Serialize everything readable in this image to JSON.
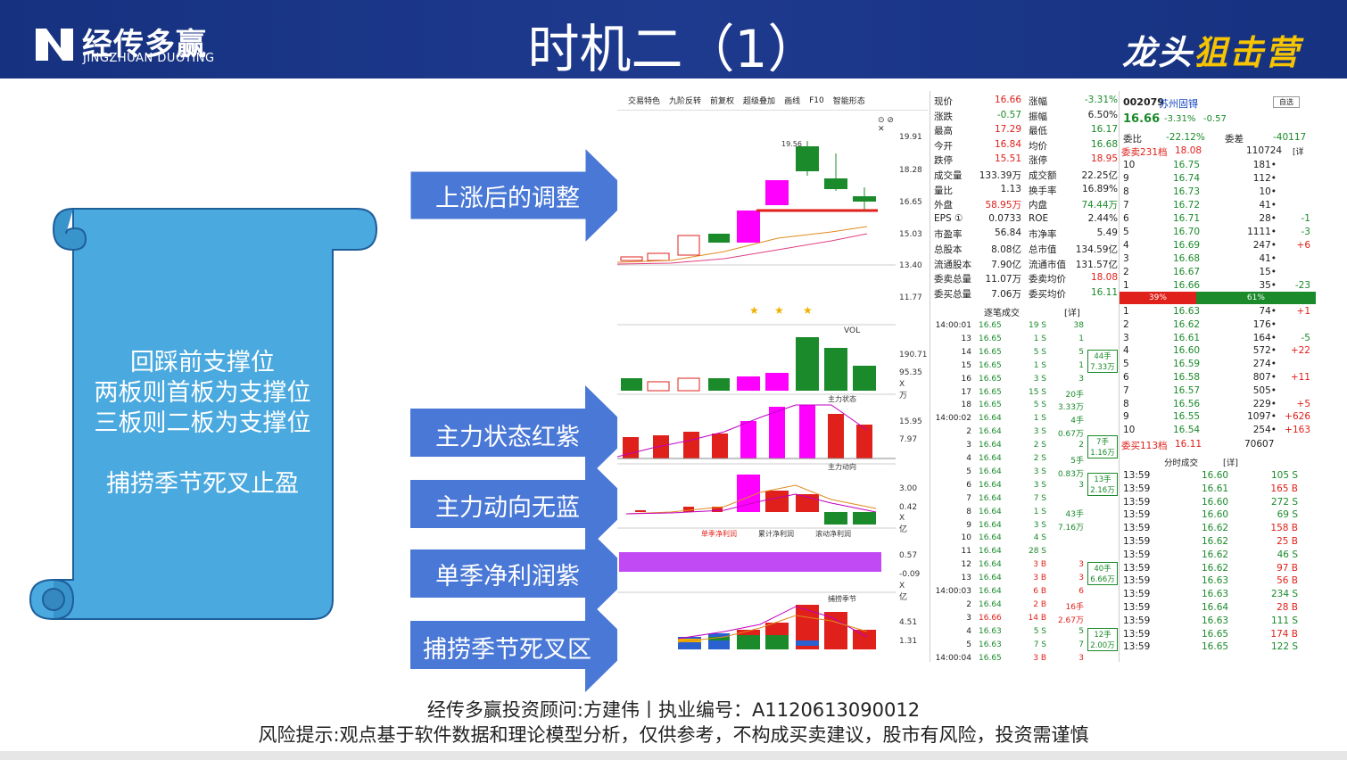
{
  "header": {
    "logo_cn": "经传多赢",
    "logo_en": "JINGZHUAN DUOYING",
    "title": "时机二（1）",
    "brand_a": "龙头",
    "brand_b": "狙击营"
  },
  "scroll_text": {
    "line1": "回踩前支撑位",
    "line2": "两板则首板为支撑位",
    "line3": "三板则二板为支撑位",
    "line4": "捕捞季节死叉止盈"
  },
  "arrows": [
    "上涨后的调整",
    "主力状态红紫",
    "主力动向无蓝",
    "单季净利润紫",
    "捕捞季节死叉区"
  ],
  "toolbar": [
    "交易特色",
    "九阶反转",
    "前复权",
    "超级叠加",
    "画线",
    "F10",
    "智能形态"
  ],
  "chart_labels": {
    "price_ticks": [
      "19.91",
      "18.28",
      "16.65",
      "15.03",
      "13.40",
      "11.77"
    ],
    "high_mark": "19.56",
    "vol_title": "VOL",
    "vol_ticks": [
      "190.71",
      "95.35",
      "X万"
    ],
    "zlzt_title": "主力状态",
    "zlzt_ticks": [
      "15.95",
      "7.97"
    ],
    "zldx_title": "主力动向",
    "zldx_ticks": [
      "3.00",
      "0.42",
      "X亿"
    ],
    "profit_tabs": [
      "单季净利润",
      "累计净利润",
      "滚动净利润"
    ],
    "profit_ticks": [
      "0.57",
      "-0.09",
      "X亿"
    ],
    "bljj_title": "捕捞季节",
    "bljj_ticks": [
      "4.51",
      "1.31"
    ]
  },
  "quote": {
    "rows": [
      [
        "现价",
        "16.66",
        "涨幅",
        "-3.31%"
      ],
      [
        "涨跌",
        "-0.57",
        "振幅",
        "6.50%"
      ],
      [
        "最高",
        "17.29",
        "最低",
        "16.17"
      ],
      [
        "今开",
        "16.84",
        "均价",
        "16.68"
      ],
      [
        "跌停",
        "15.51",
        "涨停",
        "18.95"
      ],
      [
        "成交量",
        "133.39万",
        "成交额",
        "22.25亿"
      ],
      [
        "量比",
        "1.13",
        "换手率",
        "16.89%"
      ],
      [
        "外盘",
        "58.95万",
        "内盘",
        "74.44万"
      ],
      [
        "EPS ①",
        "0.0733",
        "ROE",
        "2.44%"
      ],
      [
        "市盈率",
        "56.84",
        "市净率",
        "5.49"
      ],
      [
        "总股本",
        "8.08亿",
        "总市值",
        "134.59亿"
      ],
      [
        "流通股本",
        "7.90亿",
        "流通市值",
        "131.57亿"
      ],
      [
        "委卖总量",
        "11.07万",
        "委卖均价",
        "18.08"
      ],
      [
        "委买总量",
        "7.06万",
        "委买均价",
        "16.11"
      ]
    ],
    "ticks_title": "逐笔成交",
    "ticks_detail": "[详]",
    "ticks": [
      [
        "14:00:01",
        "16.65",
        "19 S",
        "38"
      ],
      [
        "13",
        "16.65",
        "1 S",
        "1"
      ],
      [
        "14",
        "16.65",
        "5 S",
        "5"
      ],
      [
        "15",
        "16.65",
        "1 S",
        "1"
      ],
      [
        "16",
        "16.65",
        "3 S",
        "3"
      ],
      [
        "17",
        "16.65",
        "15 S",
        "20手"
      ],
      [
        "18",
        "16.65",
        "5 S",
        "3.33万"
      ],
      [
        "14:00:02",
        "16.64",
        "1 S",
        "4手"
      ],
      [
        "2",
        "16.64",
        "3 S",
        "0.67万"
      ],
      [
        "3",
        "16.64",
        "2 S",
        "2"
      ],
      [
        "4",
        "16.64",
        "2 S",
        "5手"
      ],
      [
        "5",
        "16.64",
        "3 S",
        "0.83万"
      ],
      [
        "6",
        "16.64",
        "3 S",
        "3"
      ],
      [
        "7",
        "16.64",
        "7 S",
        ""
      ],
      [
        "8",
        "16.64",
        "1 S",
        "43手"
      ],
      [
        "9",
        "16.64",
        "3 S",
        "7.16万"
      ],
      [
        "10",
        "16.64",
        "4 S",
        ""
      ],
      [
        "11",
        "16.64",
        "28 S",
        ""
      ],
      [
        "12",
        "16.64",
        "3 B",
        "3"
      ],
      [
        "13",
        "16.64",
        "3 B",
        "3"
      ],
      [
        "14:00:03",
        "16.64",
        "6 B",
        "6"
      ],
      [
        "2",
        "16.64",
        "2 B",
        "16手"
      ],
      [
        "3",
        "16.66",
        "14 B",
        "2.67万"
      ],
      [
        "4",
        "16.63",
        "5 S",
        "5"
      ],
      [
        "5",
        "16.63",
        "7 S",
        "7"
      ],
      [
        "14:00:04",
        "16.65",
        "3 B",
        "3"
      ]
    ],
    "side_blocks": [
      [
        "44手",
        "7.33万"
      ],
      [
        "7手",
        "1.16万"
      ],
      [
        "13手",
        "2.16万"
      ],
      [
        "40手",
        "6.66万"
      ],
      [
        "12手",
        "2.00万"
      ]
    ]
  },
  "book": {
    "code": "002079",
    "name": "苏州固锝",
    "select": "自选",
    "price": "16.66",
    "pct": "-3.31%",
    "chg": "-0.57",
    "wb_label": "委比",
    "wb_val": "-22.12%",
    "wc_label": "委差",
    "wc_val": "-40117",
    "sell_summary": "委卖231档",
    "sell_summary_px": "18.08",
    "sell_summary_vol": "110724",
    "sell_summary_tag": "[详",
    "asks": [
      [
        "10",
        "16.75",
        "181",
        ""
      ],
      [
        "9",
        "16.74",
        "112",
        ""
      ],
      [
        "8",
        "16.73",
        "10",
        ""
      ],
      [
        "7",
        "16.72",
        "41",
        ""
      ],
      [
        "6",
        "16.71",
        "28",
        "-1"
      ],
      [
        "5",
        "16.70",
        "1111",
        "-3"
      ],
      [
        "4",
        "16.69",
        "247",
        "+6"
      ],
      [
        "3",
        "16.68",
        "41",
        ""
      ],
      [
        "2",
        "16.67",
        "15",
        ""
      ],
      [
        "1",
        "16.66",
        "35",
        "-23"
      ]
    ],
    "ratio_red": "39%",
    "ratio_red_frac": 0.39,
    "ratio_green": "61%",
    "bids": [
      [
        "1",
        "16.63",
        "74",
        "+1"
      ],
      [
        "2",
        "16.62",
        "176",
        ""
      ],
      [
        "3",
        "16.61",
        "164",
        "-5"
      ],
      [
        "4",
        "16.60",
        "572",
        "+22"
      ],
      [
        "5",
        "16.59",
        "274",
        ""
      ],
      [
        "6",
        "16.58",
        "807",
        "+11"
      ],
      [
        "7",
        "16.57",
        "505",
        ""
      ],
      [
        "8",
        "16.56",
        "229",
        "+5"
      ],
      [
        "9",
        "16.55",
        "1097",
        "+626"
      ],
      [
        "10",
        "16.54",
        "254",
        "+163"
      ]
    ],
    "buy_summary": "委买113档",
    "buy_summary_px": "16.11",
    "buy_summary_vol": "70607",
    "fenshi_title": "分时成交",
    "fenshi_detail": "[详]",
    "fenshi": [
      [
        "13:59",
        "16.60",
        "105 S"
      ],
      [
        "13:59",
        "16.61",
        "165 B"
      ],
      [
        "13:59",
        "16.60",
        "272 S"
      ],
      [
        "13:59",
        "16.60",
        "69 S"
      ],
      [
        "13:59",
        "16.62",
        "158 B"
      ],
      [
        "13:59",
        "16.62",
        "25 B"
      ],
      [
        "13:59",
        "16.62",
        "46 S"
      ],
      [
        "13:59",
        "16.62",
        "97 B"
      ],
      [
        "13:59",
        "16.63",
        "56 B"
      ],
      [
        "13:59",
        "16.63",
        "234 S"
      ],
      [
        "13:59",
        "16.64",
        "28 B"
      ],
      [
        "13:59",
        "16.63",
        "111 S"
      ],
      [
        "13:59",
        "16.65",
        "174 B"
      ],
      [
        "13:59",
        "16.65",
        "122 S"
      ]
    ]
  },
  "footer": {
    "line1": "经传多赢投资顾问:方建伟丨执业编号：A1120613090012",
    "line2": "风险提示:观点基于软件数据和理论模型分析，仅供参考，不构成买卖建议，股市有风险，投资需谨慎"
  }
}
